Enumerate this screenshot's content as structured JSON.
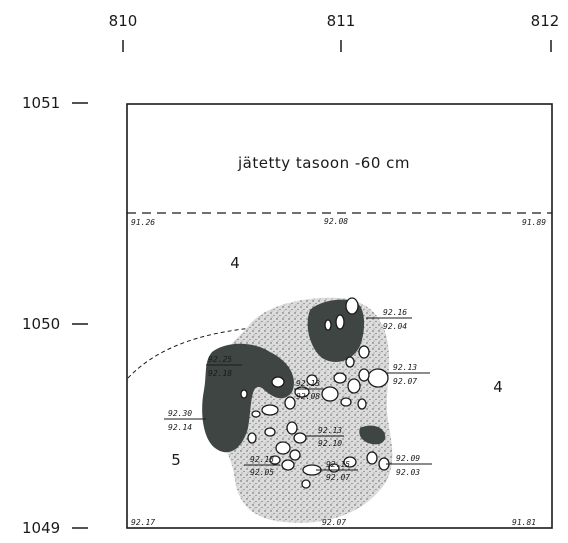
{
  "grid": {
    "x_labels": [
      "810",
      "811",
      "812"
    ],
    "y_labels": [
      "1051",
      "1050",
      "1049"
    ]
  },
  "note": "jätetty tasoon -60 cm",
  "layers": [
    "4",
    "4",
    "5"
  ],
  "elevations": {
    "top_left": "91.26",
    "top_mid": "92.08",
    "top_right": "91.89",
    "bottom_left": "92.17",
    "bottom_mid": "92.07",
    "bottom_right": "91.81",
    "e1_top": "92.16",
    "e1_bottom": "92.04",
    "e2_top": "92.13",
    "e2_bottom": "92.07",
    "e3_top": "92.09",
    "e3_bottom": "92.03",
    "w1_top": "92.25",
    "w1_bottom": "92.18",
    "w2_top": "92.30",
    "w2_bottom": "92.14",
    "c1_top": "92.13",
    "c1_bottom": "92.08",
    "c2_top": "92.13",
    "c2_bottom": "92.10",
    "c3_top": "92.13",
    "c3_bottom": "92.05",
    "c4_top": "92.15",
    "c4_bottom": "92.07"
  },
  "colors": {
    "ink": "#1a1a1a",
    "dark_fill": "#3f4543",
    "stipple_bg": "#d9d9d9"
  }
}
